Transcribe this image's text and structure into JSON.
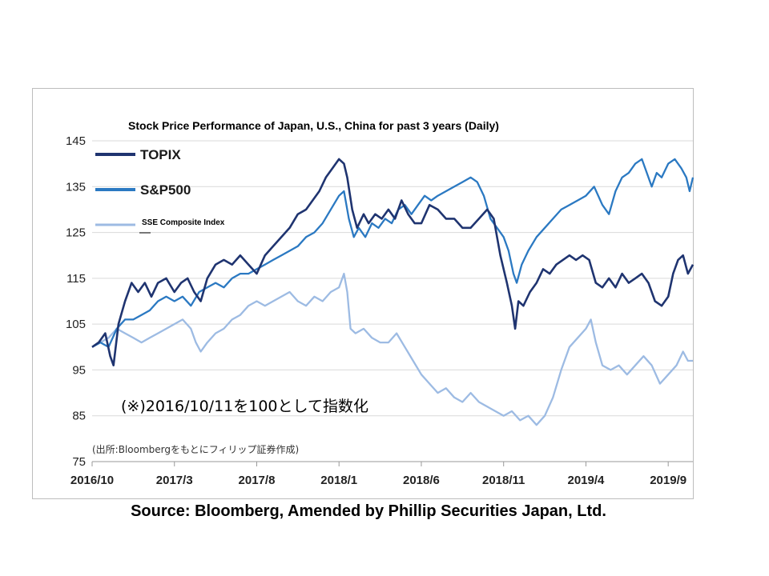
{
  "source_note": "Source: Bloomberg, Amended by Phillip Securities Japan, Ltd.",
  "chart_data": {
    "type": "line",
    "title": "Stock Price Performance of Japan, U.S., China for past 3 years (Daily)",
    "xlabel": "",
    "ylabel": "",
    "ylim": [
      75,
      145
    ],
    "yticks": [
      "145",
      "135",
      "125",
      "115",
      "105",
      "95",
      "85",
      "75"
    ],
    "xticks": [
      "2016/10",
      "2017/3",
      "2017/8",
      "2018/1",
      "2018/6",
      "2018/11",
      "2019/4",
      "2019/9"
    ],
    "grid": "horizontal",
    "legend_position": "top-left",
    "annotations": {
      "note": "(※)2016/10/11を100として指数化",
      "source_inline": "(出所:Bloombergをもとにフィリップ証券作成)"
    },
    "x_months_from_start": "months after 2016/10",
    "series": [
      {
        "name": "TOPIX",
        "color": "#1f3470",
        "points": [
          [
            0,
            100
          ],
          [
            0.4,
            101
          ],
          [
            0.8,
            103
          ],
          [
            1.1,
            98
          ],
          [
            1.3,
            96
          ],
          [
            1.6,
            105
          ],
          [
            2.0,
            110
          ],
          [
            2.4,
            114
          ],
          [
            2.8,
            112
          ],
          [
            3.2,
            114
          ],
          [
            3.6,
            111
          ],
          [
            4.0,
            114
          ],
          [
            4.5,
            115
          ],
          [
            5.0,
            112
          ],
          [
            5.4,
            114
          ],
          [
            5.8,
            115
          ],
          [
            6.2,
            112
          ],
          [
            6.6,
            110
          ],
          [
            7.0,
            115
          ],
          [
            7.5,
            118
          ],
          [
            8.0,
            119
          ],
          [
            8.5,
            118
          ],
          [
            9.0,
            120
          ],
          [
            9.5,
            118
          ],
          [
            10.0,
            116
          ],
          [
            10.5,
            120
          ],
          [
            11.0,
            122
          ],
          [
            11.5,
            124
          ],
          [
            12.0,
            126
          ],
          [
            12.5,
            129
          ],
          [
            13.0,
            130
          ],
          [
            13.4,
            132
          ],
          [
            13.8,
            134
          ],
          [
            14.2,
            137
          ],
          [
            14.6,
            139
          ],
          [
            15.0,
            141
          ],
          [
            15.3,
            140
          ],
          [
            15.5,
            137
          ],
          [
            15.8,
            130
          ],
          [
            16.1,
            126
          ],
          [
            16.5,
            129
          ],
          [
            16.8,
            127
          ],
          [
            17.2,
            129
          ],
          [
            17.6,
            128
          ],
          [
            18.0,
            130
          ],
          [
            18.4,
            128
          ],
          [
            18.8,
            132
          ],
          [
            19.2,
            129
          ],
          [
            19.6,
            127
          ],
          [
            20.0,
            127
          ],
          [
            20.5,
            131
          ],
          [
            21.0,
            130
          ],
          [
            21.5,
            128
          ],
          [
            22.0,
            128
          ],
          [
            22.5,
            126
          ],
          [
            23.0,
            126
          ],
          [
            23.5,
            128
          ],
          [
            24.0,
            130
          ],
          [
            24.4,
            128
          ],
          [
            24.8,
            120
          ],
          [
            25.2,
            114
          ],
          [
            25.5,
            109
          ],
          [
            25.7,
            104
          ],
          [
            25.9,
            110
          ],
          [
            26.2,
            109
          ],
          [
            26.6,
            112
          ],
          [
            27.0,
            114
          ],
          [
            27.4,
            117
          ],
          [
            27.8,
            116
          ],
          [
            28.2,
            118
          ],
          [
            28.6,
            119
          ],
          [
            29.0,
            120
          ],
          [
            29.4,
            119
          ],
          [
            29.8,
            120
          ],
          [
            30.2,
            119
          ],
          [
            30.6,
            114
          ],
          [
            31.0,
            113
          ],
          [
            31.4,
            115
          ],
          [
            31.8,
            113
          ],
          [
            32.2,
            116
          ],
          [
            32.6,
            114
          ],
          [
            33.0,
            115
          ],
          [
            33.4,
            116
          ],
          [
            33.8,
            114
          ],
          [
            34.2,
            110
          ],
          [
            34.6,
            109
          ],
          [
            35.0,
            111
          ],
          [
            35.3,
            116
          ],
          [
            35.6,
            119
          ],
          [
            35.9,
            120
          ],
          [
            36.2,
            116
          ],
          [
            36.5,
            118
          ]
        ]
      },
      {
        "name": "S&P500",
        "color": "#2b79c2",
        "points": [
          [
            0,
            100
          ],
          [
            0.5,
            101
          ],
          [
            1.0,
            100
          ],
          [
            1.5,
            104
          ],
          [
            2.0,
            106
          ],
          [
            2.5,
            106
          ],
          [
            3.0,
            107
          ],
          [
            3.5,
            108
          ],
          [
            4.0,
            110
          ],
          [
            4.5,
            111
          ],
          [
            5.0,
            110
          ],
          [
            5.5,
            111
          ],
          [
            6.0,
            109
          ],
          [
            6.5,
            112
          ],
          [
            7.0,
            113
          ],
          [
            7.5,
            114
          ],
          [
            8.0,
            113
          ],
          [
            8.5,
            115
          ],
          [
            9.0,
            116
          ],
          [
            9.5,
            116
          ],
          [
            10.0,
            117
          ],
          [
            10.5,
            118
          ],
          [
            11.0,
            119
          ],
          [
            11.5,
            120
          ],
          [
            12.0,
            121
          ],
          [
            12.5,
            122
          ],
          [
            13.0,
            124
          ],
          [
            13.5,
            125
          ],
          [
            14.0,
            127
          ],
          [
            14.5,
            130
          ],
          [
            15.0,
            133
          ],
          [
            15.3,
            134
          ],
          [
            15.6,
            128
          ],
          [
            15.9,
            124
          ],
          [
            16.2,
            126
          ],
          [
            16.6,
            124
          ],
          [
            17.0,
            127
          ],
          [
            17.4,
            126
          ],
          [
            17.8,
            128
          ],
          [
            18.2,
            127
          ],
          [
            18.6,
            130
          ],
          [
            19.0,
            131
          ],
          [
            19.4,
            129
          ],
          [
            19.8,
            131
          ],
          [
            20.2,
            133
          ],
          [
            20.6,
            132
          ],
          [
            21.0,
            133
          ],
          [
            21.5,
            134
          ],
          [
            22.0,
            135
          ],
          [
            22.5,
            136
          ],
          [
            23.0,
            137
          ],
          [
            23.4,
            136
          ],
          [
            23.8,
            133
          ],
          [
            24.2,
            128
          ],
          [
            24.6,
            126
          ],
          [
            25.0,
            124
          ],
          [
            25.3,
            121
          ],
          [
            25.6,
            116
          ],
          [
            25.8,
            114
          ],
          [
            26.1,
            118
          ],
          [
            26.5,
            121
          ],
          [
            27.0,
            124
          ],
          [
            27.5,
            126
          ],
          [
            28.0,
            128
          ],
          [
            28.5,
            130
          ],
          [
            29.0,
            131
          ],
          [
            29.5,
            132
          ],
          [
            30.0,
            133
          ],
          [
            30.5,
            135
          ],
          [
            31.0,
            131
          ],
          [
            31.4,
            129
          ],
          [
            31.8,
            134
          ],
          [
            32.2,
            137
          ],
          [
            32.6,
            138
          ],
          [
            33.0,
            140
          ],
          [
            33.4,
            141
          ],
          [
            33.7,
            138
          ],
          [
            34.0,
            135
          ],
          [
            34.3,
            138
          ],
          [
            34.6,
            137
          ],
          [
            35.0,
            140
          ],
          [
            35.4,
            141
          ],
          [
            35.8,
            139
          ],
          [
            36.1,
            137
          ],
          [
            36.3,
            134
          ],
          [
            36.5,
            137
          ]
        ]
      },
      {
        "name": "SSE Composite Index",
        "color": "#9dbbe3",
        "points": [
          [
            0,
            100
          ],
          [
            0.5,
            101
          ],
          [
            1.0,
            102
          ],
          [
            1.5,
            104
          ],
          [
            2.0,
            103
          ],
          [
            2.5,
            102
          ],
          [
            3.0,
            101
          ],
          [
            3.5,
            102
          ],
          [
            4.0,
            103
          ],
          [
            4.5,
            104
          ],
          [
            5.0,
            105
          ],
          [
            5.5,
            106
          ],
          [
            6.0,
            104
          ],
          [
            6.3,
            101
          ],
          [
            6.6,
            99
          ],
          [
            7.0,
            101
          ],
          [
            7.5,
            103
          ],
          [
            8.0,
            104
          ],
          [
            8.5,
            106
          ],
          [
            9.0,
            107
          ],
          [
            9.5,
            109
          ],
          [
            10.0,
            110
          ],
          [
            10.5,
            109
          ],
          [
            11.0,
            110
          ],
          [
            11.5,
            111
          ],
          [
            12.0,
            112
          ],
          [
            12.5,
            110
          ],
          [
            13.0,
            109
          ],
          [
            13.5,
            111
          ],
          [
            14.0,
            110
          ],
          [
            14.5,
            112
          ],
          [
            15.0,
            113
          ],
          [
            15.3,
            116
          ],
          [
            15.5,
            112
          ],
          [
            15.7,
            104
          ],
          [
            16.0,
            103
          ],
          [
            16.5,
            104
          ],
          [
            17.0,
            102
          ],
          [
            17.5,
            101
          ],
          [
            18.0,
            101
          ],
          [
            18.5,
            103
          ],
          [
            19.0,
            100
          ],
          [
            19.5,
            97
          ],
          [
            20.0,
            94
          ],
          [
            20.5,
            92
          ],
          [
            21.0,
            90
          ],
          [
            21.5,
            91
          ],
          [
            22.0,
            89
          ],
          [
            22.5,
            88
          ],
          [
            23.0,
            90
          ],
          [
            23.5,
            88
          ],
          [
            24.0,
            87
          ],
          [
            24.5,
            86
          ],
          [
            25.0,
            85
          ],
          [
            25.5,
            86
          ],
          [
            26.0,
            84
          ],
          [
            26.5,
            85
          ],
          [
            27.0,
            83
          ],
          [
            27.5,
            85
          ],
          [
            28.0,
            89
          ],
          [
            28.5,
            95
          ],
          [
            29.0,
            100
          ],
          [
            29.5,
            102
          ],
          [
            30.0,
            104
          ],
          [
            30.3,
            106
          ],
          [
            30.6,
            101
          ],
          [
            31.0,
            96
          ],
          [
            31.5,
            95
          ],
          [
            32.0,
            96
          ],
          [
            32.5,
            94
          ],
          [
            33.0,
            96
          ],
          [
            33.5,
            98
          ],
          [
            34.0,
            96
          ],
          [
            34.5,
            92
          ],
          [
            35.0,
            94
          ],
          [
            35.5,
            96
          ],
          [
            35.9,
            99
          ],
          [
            36.2,
            97
          ],
          [
            36.5,
            97
          ]
        ]
      }
    ]
  }
}
